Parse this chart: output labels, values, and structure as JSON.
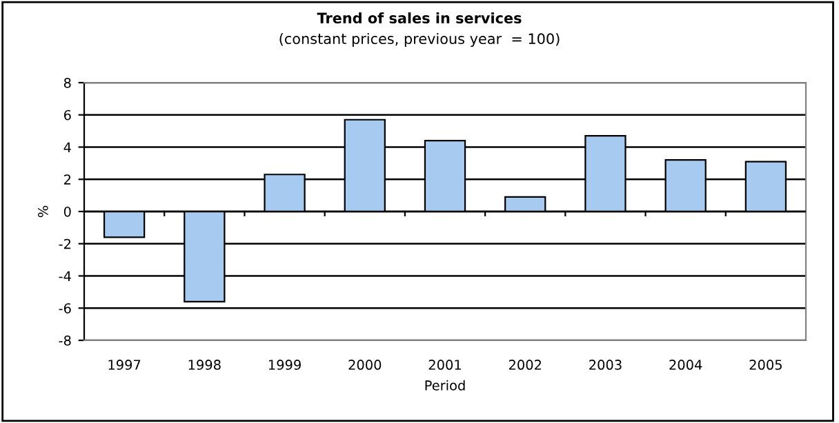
{
  "chart_data": {
    "type": "bar",
    "title": "Trend of sales in services",
    "subtitle": "(constant prices, previous year  = 100)",
    "xlabel": "Period",
    "ylabel": "%",
    "categories": [
      "1997",
      "1998",
      "1999",
      "2000",
      "2001",
      "2002",
      "2003",
      "2004",
      "2005"
    ],
    "values": [
      -1.6,
      -5.6,
      2.3,
      5.7,
      4.4,
      0.9,
      4.7,
      3.2,
      3.1
    ],
    "color": "#a6caf0",
    "ylim": [
      -8,
      8
    ],
    "yticks": [
      -8,
      -6,
      -4,
      -2,
      0,
      2,
      4,
      6,
      8
    ],
    "grid": "y"
  }
}
